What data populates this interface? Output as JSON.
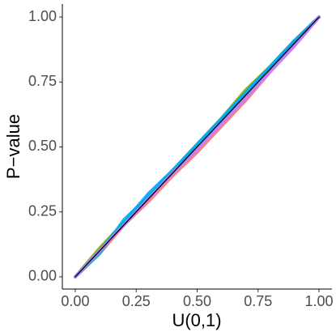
{
  "chart_data": {
    "type": "line",
    "x_label": "U(0,1)",
    "y_label": "P−value",
    "x": [
      0,
      0.1,
      0.2,
      0.3,
      0.4,
      0.5,
      0.6,
      0.7,
      0.8,
      0.9,
      1
    ],
    "series": [
      {
        "color": "#f8766d",
        "values": [
          0,
          0.09,
          0.2,
          0.29,
          0.39,
          0.48,
          0.58,
          0.68,
          0.79,
          0.89,
          1
        ]
      },
      {
        "color": "#7cae00",
        "values": [
          0,
          0.11,
          0.21,
          0.31,
          0.41,
          0.51,
          0.61,
          0.72,
          0.81,
          0.91,
          1
        ]
      },
      {
        "color": "#00bfc4",
        "values": [
          0,
          0.09,
          0.22,
          0.31,
          0.4,
          0.5,
          0.6,
          0.7,
          0.8,
          0.9,
          1
        ]
      },
      {
        "color": "#00a9ff",
        "values": [
          0,
          0.1,
          0.21,
          0.32,
          0.41,
          0.51,
          0.61,
          0.71,
          0.81,
          0.91,
          1
        ]
      },
      {
        "color": "#c77cff",
        "values": [
          0,
          0.1,
          0.2,
          0.3,
          0.4,
          0.49,
          0.59,
          0.69,
          0.79,
          0.89,
          1
        ]
      },
      {
        "color": "#000000",
        "values": [
          0,
          0.1,
          0.2,
          0.3,
          0.4,
          0.5,
          0.6,
          0.7,
          0.8,
          0.9,
          1
        ]
      }
    ],
    "xlim": [
      -0.053,
      1.053
    ],
    "ylim": [
      -0.047,
      1.05
    ],
    "xticks": [
      {
        "value": 0,
        "label": "0.00"
      },
      {
        "value": 0.25,
        "label": "0.25"
      },
      {
        "value": 0.5,
        "label": "0.50"
      },
      {
        "value": 0.75,
        "label": "0.75"
      },
      {
        "value": 1,
        "label": "1.00"
      }
    ],
    "yticks": [
      {
        "value": 0,
        "label": "0.00"
      },
      {
        "value": 0.25,
        "label": "0.25"
      },
      {
        "value": 0.5,
        "label": "0.50"
      },
      {
        "value": 0.75,
        "label": "0.75"
      },
      {
        "value": 1,
        "label": "1.00"
      }
    ],
    "grid": false
  }
}
